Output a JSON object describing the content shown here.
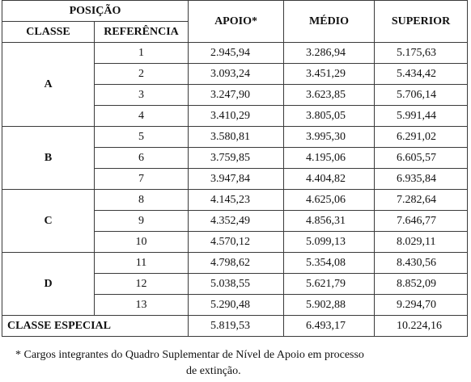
{
  "header": {
    "posicao": "POSIÇÃO",
    "classe": "CLASSE",
    "referencia": "REFERÊNCIA",
    "apoio": "APOIO*",
    "medio": "MÉDIO",
    "superior": "SUPERIOR"
  },
  "groups": [
    {
      "classe": "A",
      "rows": [
        {
          "ref": "1",
          "apoio": "2.945,94",
          "medio": "3.286,94",
          "superior": "5.175,63"
        },
        {
          "ref": "2",
          "apoio": "3.093,24",
          "medio": "3.451,29",
          "superior": "5.434,42"
        },
        {
          "ref": "3",
          "apoio": "3.247,90",
          "medio": "3.623,85",
          "superior": "5.706,14"
        },
        {
          "ref": "4",
          "apoio": "3.410,29",
          "medio": "3.805,05",
          "superior": "5.991,44"
        }
      ]
    },
    {
      "classe": "B",
      "rows": [
        {
          "ref": "5",
          "apoio": "3.580,81",
          "medio": "3.995,30",
          "superior": "6.291,02"
        },
        {
          "ref": "6",
          "apoio": "3.759,85",
          "medio": "4.195,06",
          "superior": "6.605,57"
        },
        {
          "ref": "7",
          "apoio": "3.947,84",
          "medio": "4.404,82",
          "superior": "6.935,84"
        }
      ]
    },
    {
      "classe": "C",
      "rows": [
        {
          "ref": "8",
          "apoio": "4.145,23",
          "medio": "4.625,06",
          "superior": "7.282,64"
        },
        {
          "ref": "9",
          "apoio": "4.352,49",
          "medio": "4.856,31",
          "superior": "7.646,77"
        },
        {
          "ref": "10",
          "apoio": "4.570,12",
          "medio": "5.099,13",
          "superior": "8.029,11"
        }
      ]
    },
    {
      "classe": "D",
      "rows": [
        {
          "ref": "11",
          "apoio": "4.798,62",
          "medio": "5.354,08",
          "superior": "8.430,56"
        },
        {
          "ref": "12",
          "apoio": "5.038,55",
          "medio": "5.621,79",
          "superior": "8.852,09"
        },
        {
          "ref": "13",
          "apoio": "5.290,48",
          "medio": "5.902,88",
          "superior": "9.294,70"
        }
      ]
    }
  ],
  "especial": {
    "label": "CLASSE ESPECIAL",
    "apoio": "5.819,53",
    "medio": "6.493,17",
    "superior": "10.224,16"
  },
  "footnote": {
    "line1": "* Cargos integrantes do Quadro Suplementar de Nível de Apoio em processo",
    "line2": "de extinção."
  }
}
